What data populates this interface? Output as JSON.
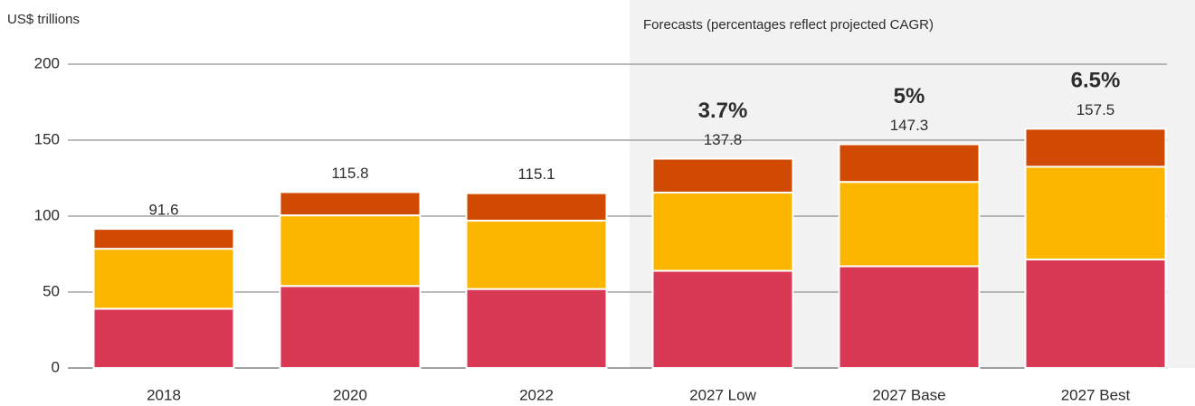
{
  "chart_data": {
    "type": "stacked_bar",
    "y_axis_label": "US$ trillions",
    "categories": [
      "2018",
      "2020",
      "2022",
      "2027 Low",
      "2027 Base",
      "2027 Best"
    ],
    "series": [
      {
        "color": "#d93954",
        "values": [
          39,
          54,
          52,
          64,
          67,
          71.5
        ]
      },
      {
        "color": "#fdb600",
        "values": [
          39.5,
          46.5,
          45,
          51.5,
          55.5,
          61
        ]
      },
      {
        "color": "#d04a02",
        "values": [
          13.1,
          15.3,
          18.1,
          22.3,
          24.8,
          25
        ]
      }
    ],
    "totals": [
      91.6,
      115.8,
      115.1,
      137.8,
      147.3,
      157.5
    ],
    "forecast": {
      "label": "Forecasts (percentages reflect projected CAGR)",
      "start": "2027 Low",
      "color": "#f2f2f2"
    },
    "cagr": {
      "categories": [
        "2027 Low",
        "2027 Base",
        "2027 Best"
      ],
      "labels": [
        "3.7%",
        "5%",
        "6.5%"
      ]
    },
    "ylim": [
      0,
      200
    ],
    "yticks": [
      0,
      50,
      100,
      150,
      200
    ],
    "grid": true
  }
}
